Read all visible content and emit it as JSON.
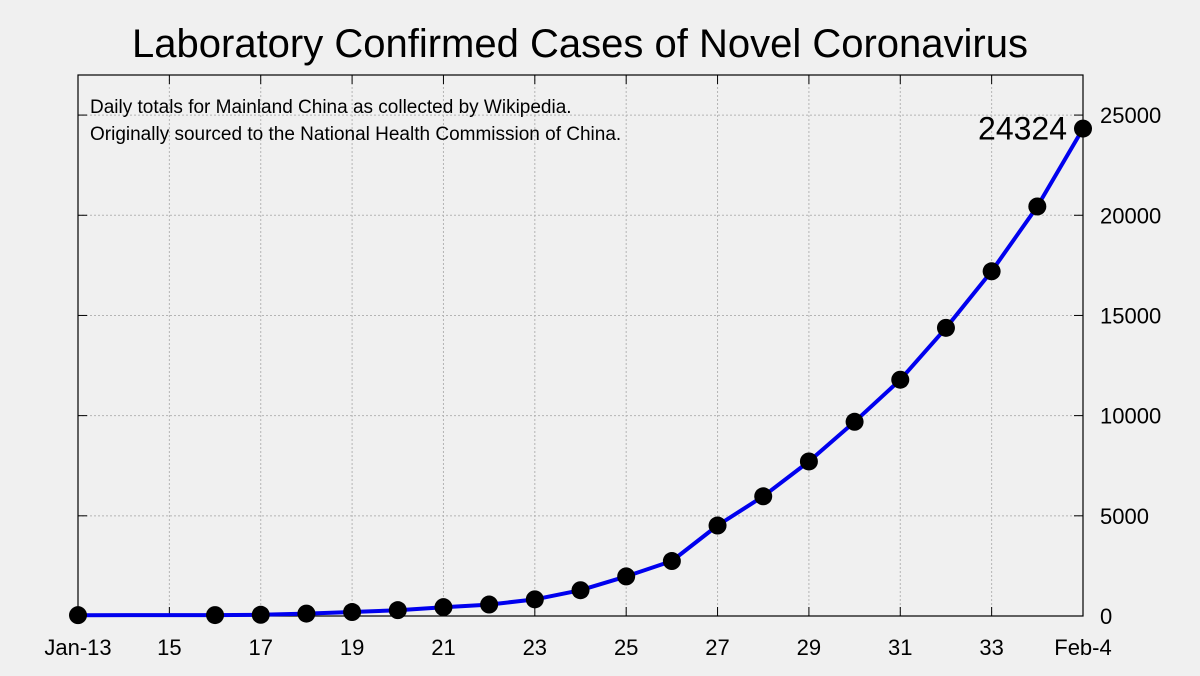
{
  "chart_data": {
    "type": "line",
    "title": "Laboratory Confirmed Cases of Novel Coronavirus",
    "annotation_lines": [
      "Daily totals for Mainland China as collected by Wikipedia.",
      "Originally sourced to the National Health Commission of China."
    ],
    "xlabel": "",
    "ylabel": "",
    "x_ticks": [
      {
        "day": 13,
        "label": "Jan-13"
      },
      {
        "day": 15,
        "label": "15"
      },
      {
        "day": 17,
        "label": "17"
      },
      {
        "day": 19,
        "label": "19"
      },
      {
        "day": 21,
        "label": "21"
      },
      {
        "day": 23,
        "label": "23"
      },
      {
        "day": 25,
        "label": "25"
      },
      {
        "day": 27,
        "label": "27"
      },
      {
        "day": 29,
        "label": "29"
      },
      {
        "day": 31,
        "label": "31"
      },
      {
        "day": 33,
        "label": "33"
      },
      {
        "day": 35,
        "label": "Feb-4"
      }
    ],
    "xlim": [
      13,
      35
    ],
    "y_ticks": [
      "0",
      "5000",
      "10000",
      "15000",
      "20000",
      "25000"
    ],
    "ylim": [
      0,
      27000
    ],
    "y_axis_side": "right",
    "grid": true,
    "line_color": "#0000ee",
    "marker_color": "#000000",
    "series": [
      {
        "x": [
          13,
          16,
          17,
          18,
          19,
          20,
          21,
          22,
          23,
          24,
          25,
          26,
          27,
          28,
          29,
          30,
          31,
          32,
          33,
          34,
          35
        ],
        "values": [
          41,
          45,
          62,
          121,
          198,
          291,
          440,
          571,
          830,
          1287,
          1975,
          2744,
          4515,
          5974,
          7711,
          9692,
          11791,
          14380,
          17205,
          20438,
          24324
        ]
      }
    ],
    "last_value_label": "24324"
  }
}
